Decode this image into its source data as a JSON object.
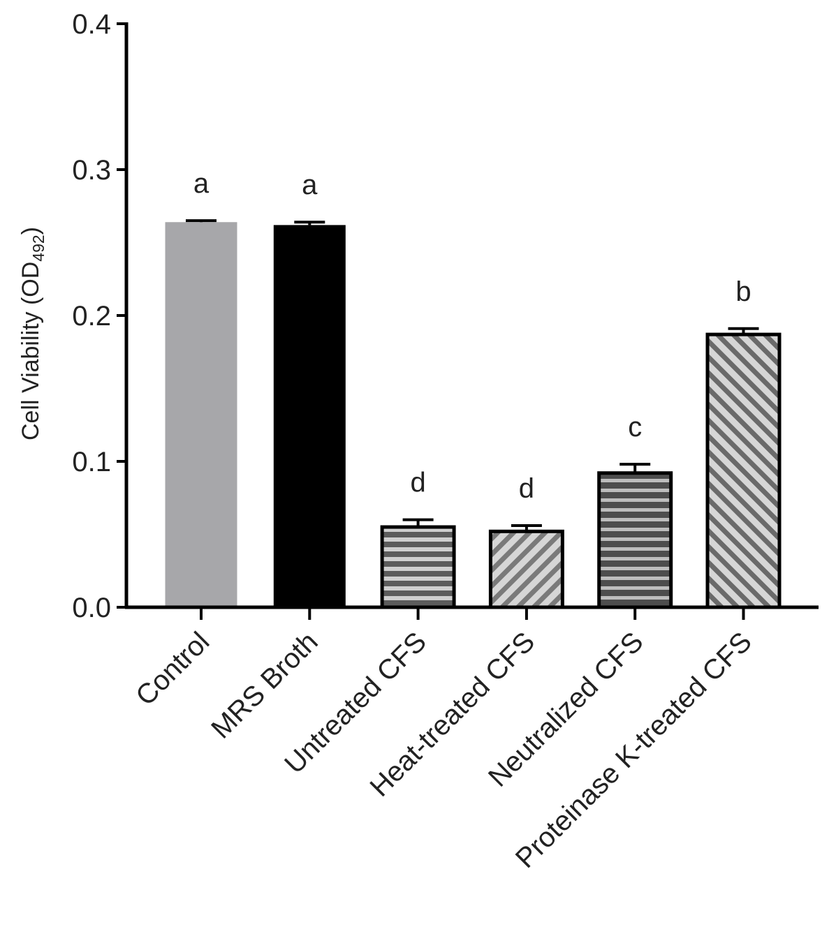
{
  "chart_data": {
    "type": "bar",
    "title": "",
    "xlabel": "",
    "ylabel": {
      "main": "Cell Viability (OD",
      "subscript": "492",
      "close": ")"
    },
    "ylim": [
      0,
      0.4
    ],
    "yticks": [
      "0.0",
      "0.1",
      "0.2",
      "0.3",
      "0.4"
    ],
    "grid": false,
    "categories": [
      "Control",
      "MRS Broth",
      "Untreated CFS",
      "Heat-treated CFS",
      "Neutralized CFS",
      "Proteinase K-treated CFS"
    ],
    "values": [
      0.264,
      0.262,
      0.055,
      0.052,
      0.092,
      0.187
    ],
    "errors": [
      0.001,
      0.002,
      0.005,
      0.004,
      0.006,
      0.004
    ],
    "significance_letters": [
      "a",
      "a",
      "d",
      "d",
      "c",
      "b"
    ],
    "bar_styles": [
      {
        "fill": "solid",
        "color": "#a7a7aa"
      },
      {
        "fill": "solid",
        "color": "#000000"
      },
      {
        "fill": "horizontal-stripes",
        "color": "#6e6e6e"
      },
      {
        "fill": "diagonal-stripes-down",
        "color": "#a3a3a3"
      },
      {
        "fill": "horizontal-stripes",
        "color": "#5e5e5e"
      },
      {
        "fill": "diagonal-stripes-up",
        "color": "#a3a3a3"
      }
    ]
  }
}
